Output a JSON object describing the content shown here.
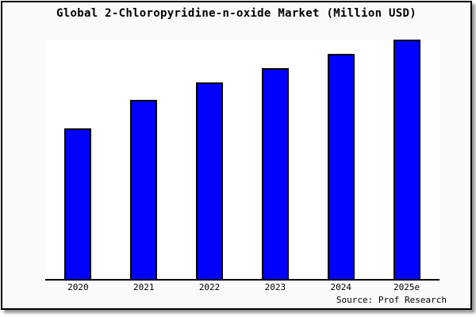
{
  "title": "Global 2-Chloropyridine-n-oxide Market (Million USD)",
  "source": "Source: Prof Research",
  "colors": {
    "bar_fill": "#0000ff",
    "bar_border": "#000000",
    "figure_background": "#fafafa",
    "plot_background": "#ffffff",
    "axis": "#000000",
    "text": "#000000"
  },
  "chart_data": {
    "type": "bar",
    "title": "Global 2-Chloropyridine-n-oxide Market (Million USD)",
    "categories": [
      "2020",
      "2021",
      "2022",
      "2023",
      "2024",
      "2025e"
    ],
    "values": [
      63,
      75,
      82,
      88,
      94,
      100
    ],
    "values_unit": "relative index (no y-axis labels shown; estimated from bar heights, 2025e = 100)",
    "xlabel": "",
    "ylabel": "",
    "ylim": [
      0,
      100
    ],
    "grid": false,
    "legend": false,
    "annotation": "Source: Prof Research"
  }
}
